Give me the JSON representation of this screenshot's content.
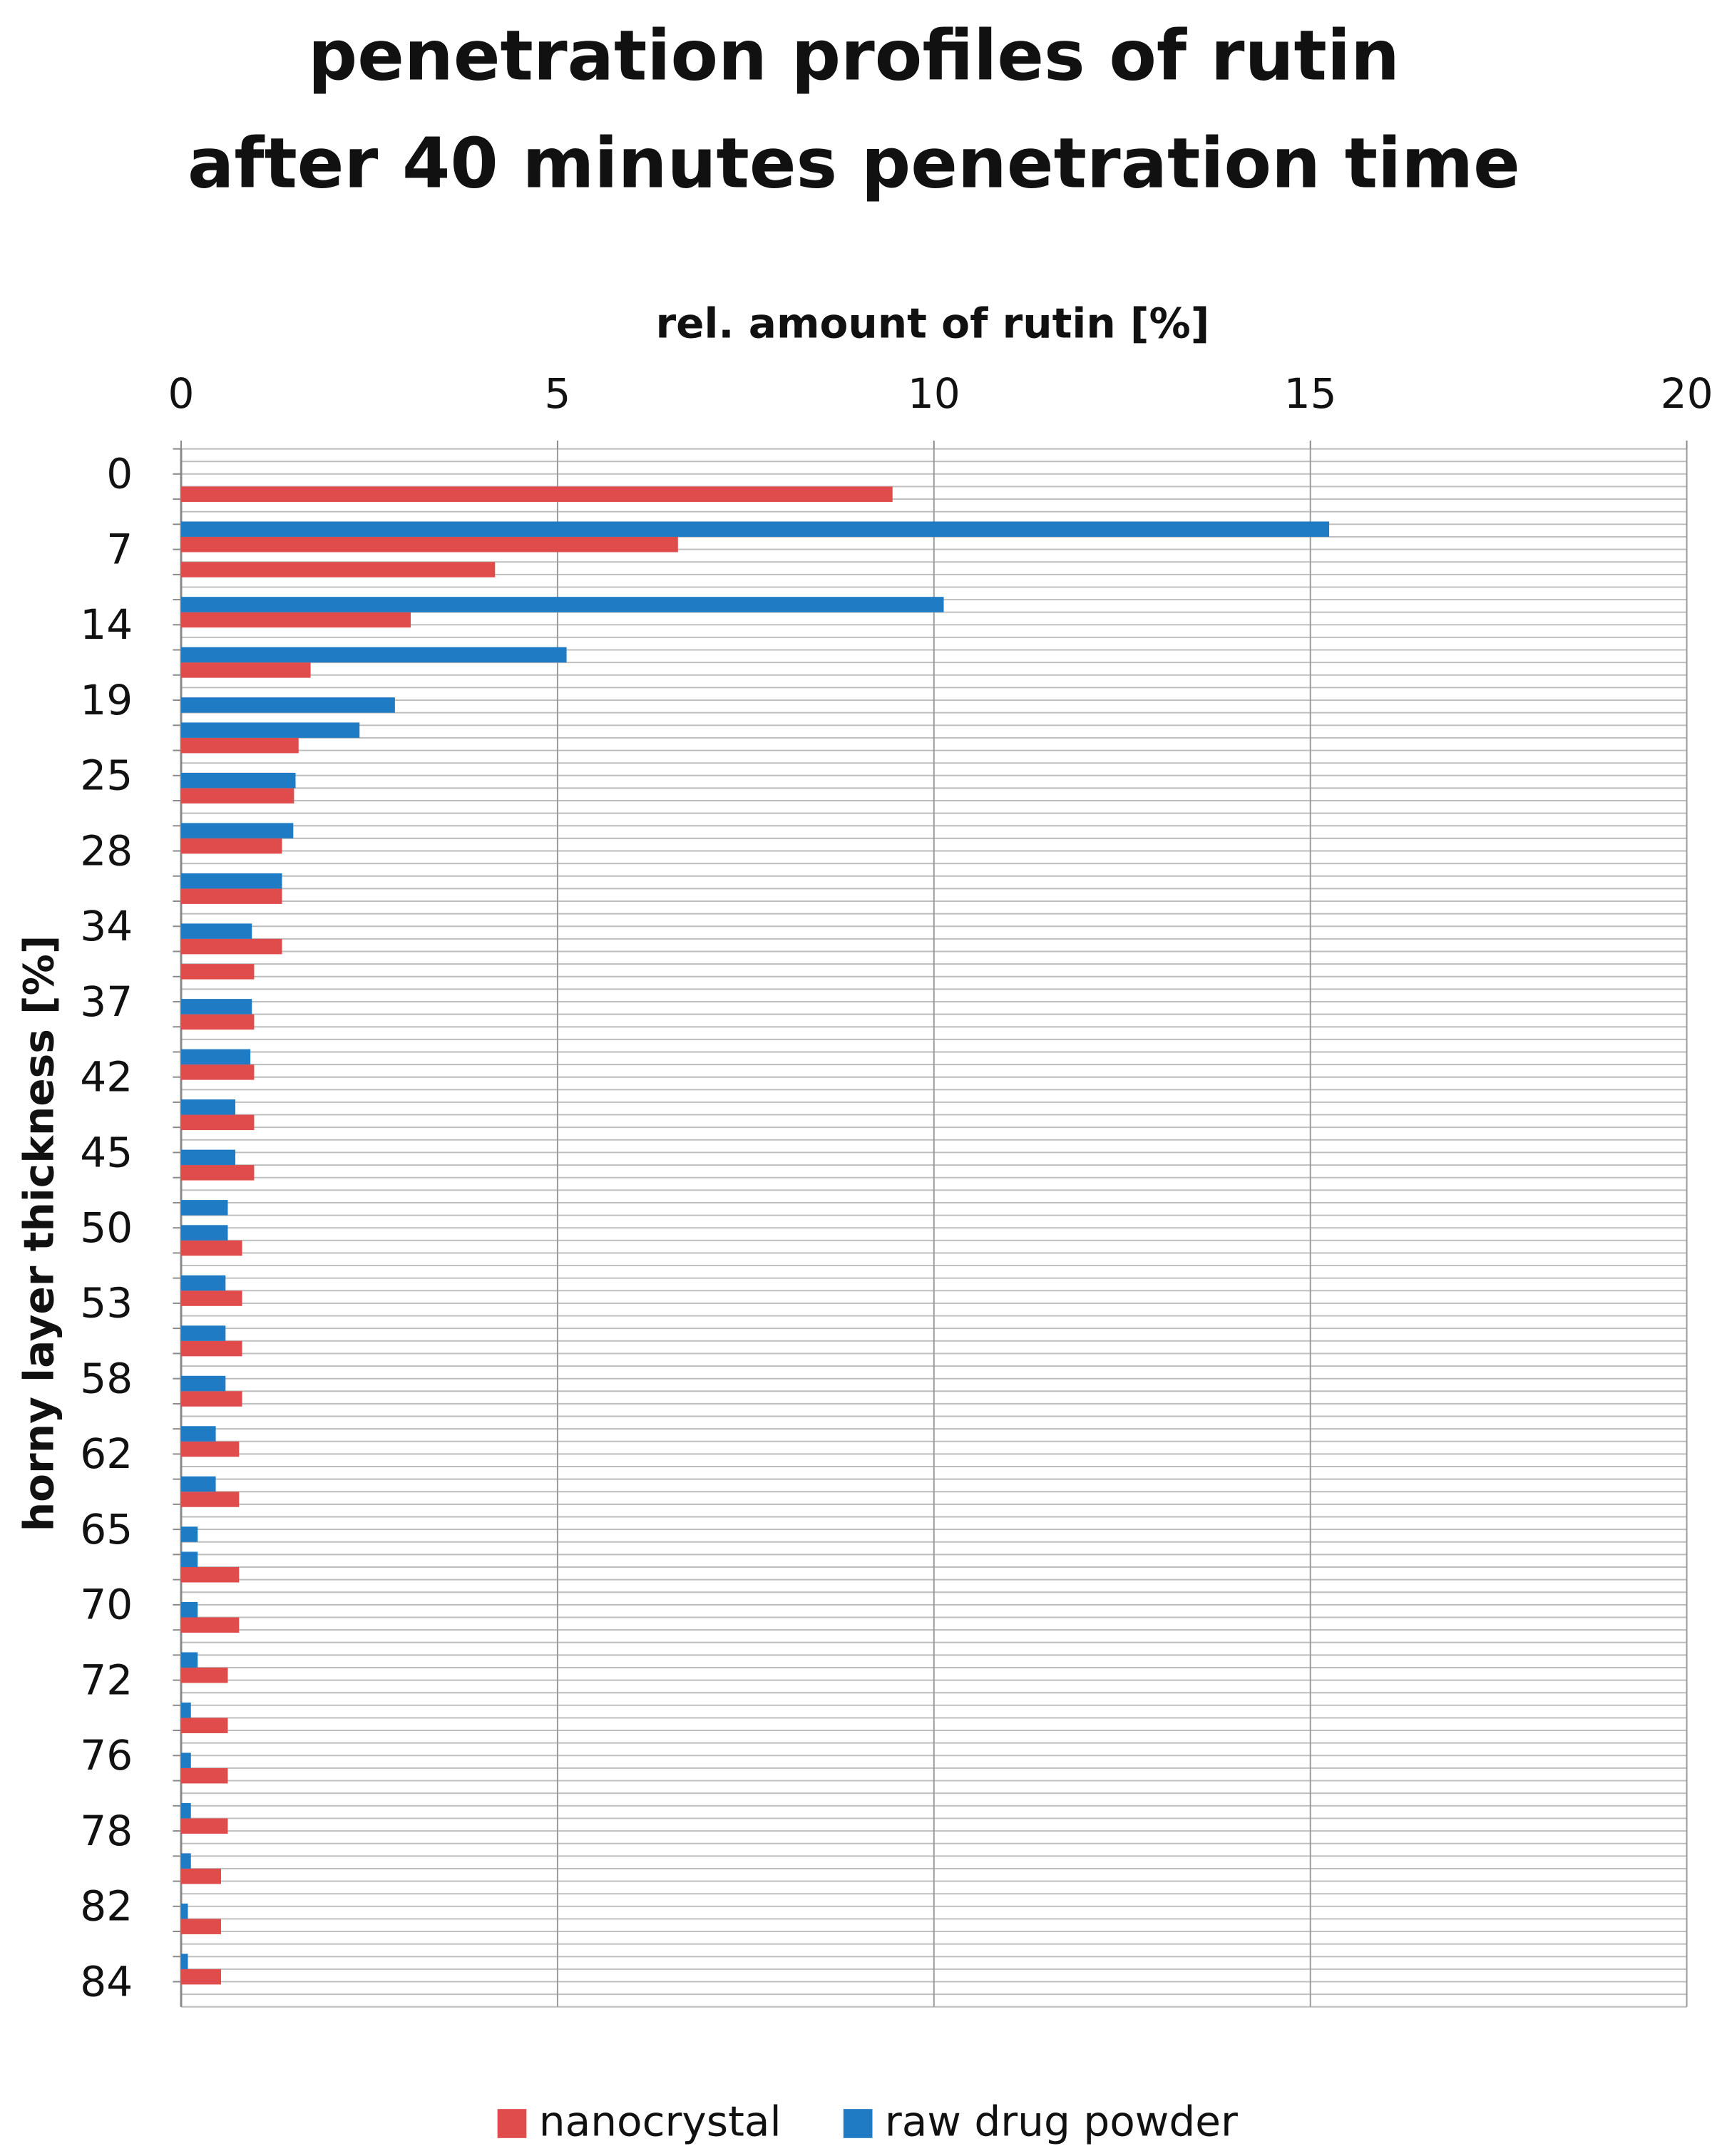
{
  "chart_data": {
    "type": "hbar",
    "title": [
      "penetration profiles of rutin",
      "after 40 minutes penetration time"
    ],
    "x_label": "rel. amount of rutin [%]",
    "y_label": "horny layer thickness [%]",
    "categories": [
      "0",
      null,
      null,
      "7",
      null,
      null,
      "14",
      null,
      null,
      "19",
      null,
      null,
      "25",
      null,
      null,
      "28",
      null,
      null,
      "34",
      null,
      null,
      "37",
      null,
      null,
      "42",
      null,
      null,
      "45",
      null,
      null,
      "50",
      null,
      null,
      "53",
      null,
      null,
      "58",
      null,
      null,
      "62",
      null,
      null,
      "65",
      null,
      null,
      "70",
      null,
      null,
      "72",
      null,
      null,
      "76",
      null,
      null,
      "78",
      null,
      null,
      "82",
      null,
      null,
      "84",
      null
    ],
    "series": [
      {
        "name": "nanocrystal",
        "color": "#e04c4c",
        "values": [
          null,
          9.45,
          null,
          6.6,
          4.17,
          null,
          3.05,
          null,
          1.72,
          null,
          null,
          1.56,
          null,
          1.5,
          null,
          1.34,
          null,
          1.34,
          null,
          1.34,
          0.97,
          null,
          0.97,
          null,
          0.97,
          null,
          0.97,
          null,
          0.97,
          null,
          null,
          0.81,
          null,
          0.81,
          null,
          0.81,
          null,
          0.81,
          null,
          0.77,
          null,
          0.77,
          null,
          null,
          0.77,
          null,
          0.77,
          null,
          0.62,
          null,
          0.62,
          null,
          0.62,
          null,
          0.62,
          null,
          0.53,
          null,
          0.53,
          null,
          0.53,
          null
        ]
      },
      {
        "name": "raw drug powder",
        "color": "#1f7cc4",
        "values": [
          null,
          null,
          null,
          15.25,
          null,
          null,
          10.13,
          null,
          5.12,
          null,
          2.84,
          2.37,
          null,
          1.52,
          null,
          1.49,
          null,
          1.34,
          null,
          0.94,
          null,
          null,
          0.94,
          null,
          0.92,
          null,
          0.72,
          null,
          0.72,
          null,
          0.62,
          0.62,
          null,
          0.59,
          null,
          0.59,
          null,
          0.59,
          null,
          0.46,
          null,
          0.46,
          null,
          0.22,
          0.22,
          null,
          0.22,
          null,
          0.22,
          null,
          0.13,
          null,
          0.13,
          null,
          0.13,
          null,
          0.13,
          null,
          0.09,
          null,
          0.09,
          null
        ]
      }
    ],
    "xlim": [
      0,
      20
    ],
    "xticks": [
      0,
      5,
      10,
      15,
      20
    ],
    "x_axis_position": "top",
    "grid": true,
    "legend": "bottom"
  }
}
